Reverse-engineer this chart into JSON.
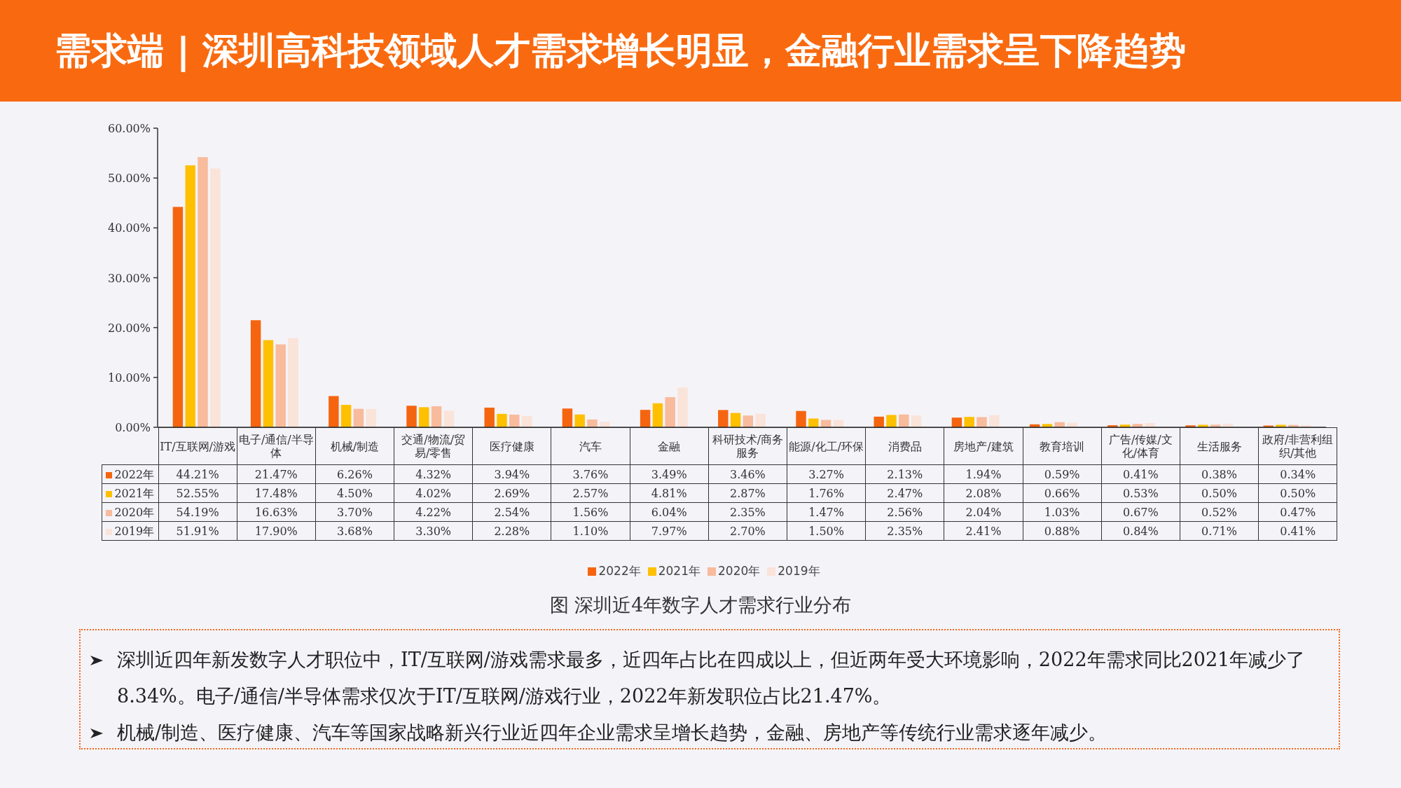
{
  "chart_data": {
    "type": "bar",
    "title": "需求端 | 深圳高科技领域人才需求增长明显，金融行业需求呈下降趋势",
    "subtitle": "图 深圳近4年数字人才需求行业分布",
    "categories": [
      "IT/互联网/游戏",
      "电子/通信/半导体",
      "机械/制造",
      "交通/物流/贸易/零售",
      "医疗健康",
      "汽车",
      "金融",
      "科研技术/商务服务",
      "能源/化工/环保",
      "消费品",
      "房地产/建筑",
      "教育培训",
      "广告/传媒/文化/体育",
      "生活服务",
      "政府/非营利组织/其他"
    ],
    "series": [
      {
        "name": "2022年",
        "color": "#f5650f",
        "values": [
          44.21,
          21.47,
          6.26,
          4.32,
          3.94,
          3.76,
          3.49,
          3.46,
          3.27,
          2.13,
          1.94,
          0.59,
          0.41,
          0.38,
          0.34
        ],
        "value_labels": [
          "44.21%",
          "21.47%",
          "6.26%",
          "4.32%",
          "3.94%",
          "3.76%",
          "3.49%",
          "3.46%",
          "3.27%",
          "2.13%",
          "1.94%",
          "0.59%",
          "0.41%",
          "0.38%",
          "0.34%"
        ]
      },
      {
        "name": "2021年",
        "color": "#ffc000",
        "values": [
          52.55,
          17.48,
          4.5,
          4.02,
          2.69,
          2.57,
          4.81,
          2.87,
          1.76,
          2.47,
          2.08,
          0.66,
          0.53,
          0.5,
          0.5
        ],
        "value_labels": [
          "52.55%",
          "17.48%",
          "4.50%",
          "4.02%",
          "2.69%",
          "2.57%",
          "4.81%",
          "2.87%",
          "1.76%",
          "2.47%",
          "2.08%",
          "0.66%",
          "0.53%",
          "0.50%",
          "0.50%"
        ]
      },
      {
        "name": "2020年",
        "color": "#f8bb9c",
        "values": [
          54.19,
          16.63,
          3.7,
          4.22,
          2.54,
          1.56,
          6.04,
          2.35,
          1.47,
          2.56,
          2.04,
          1.03,
          0.67,
          0.52,
          0.47
        ],
        "value_labels": [
          "54.19%",
          "16.63%",
          "3.70%",
          "4.22%",
          "2.54%",
          "1.56%",
          "6.04%",
          "2.35%",
          "1.47%",
          "2.56%",
          "2.04%",
          "1.03%",
          "0.67%",
          "0.52%",
          "0.47%"
        ]
      },
      {
        "name": "2019年",
        "color": "#fae3d9",
        "values": [
          51.91,
          17.9,
          3.68,
          3.3,
          2.28,
          1.1,
          7.97,
          2.7,
          1.5,
          2.35,
          2.41,
          0.88,
          0.84,
          0.71,
          0.41
        ],
        "value_labels": [
          "51.91%",
          "17.90%",
          "3.68%",
          "3.30%",
          "2.28%",
          "1.10%",
          "7.97%",
          "2.70%",
          "1.50%",
          "2.35%",
          "2.41%",
          "0.88%",
          "0.84%",
          "0.71%",
          "0.41%"
        ]
      }
    ],
    "ylim": [
      0,
      60
    ],
    "yticks": [
      {
        "value": 0,
        "label": "0.00%"
      },
      {
        "value": 10,
        "label": "10.00%"
      },
      {
        "value": 20,
        "label": "20.00%"
      },
      {
        "value": 30,
        "label": "30.00%"
      },
      {
        "value": 40,
        "label": "40.00%"
      },
      {
        "value": 50,
        "label": "50.00%"
      },
      {
        "value": 60,
        "label": "60.00%"
      }
    ],
    "legend": "bottom",
    "annotations": [
      "深圳近四年新发数字人才职位中，IT/互联网/游戏需求最多，近四年占比在四成以上，但近两年受大环境影响，2022年需求同比2021年减少了8.34%。电子/通信/半导体需求仅次于IT/互联网/游戏行业，2022年新发职位占比21.47%。",
      "机械/制造、医疗健康、汽车等国家战略新兴行业近四年企业需求呈增长趋势，金融、房地产等传统行业需求逐年减少。"
    ]
  }
}
